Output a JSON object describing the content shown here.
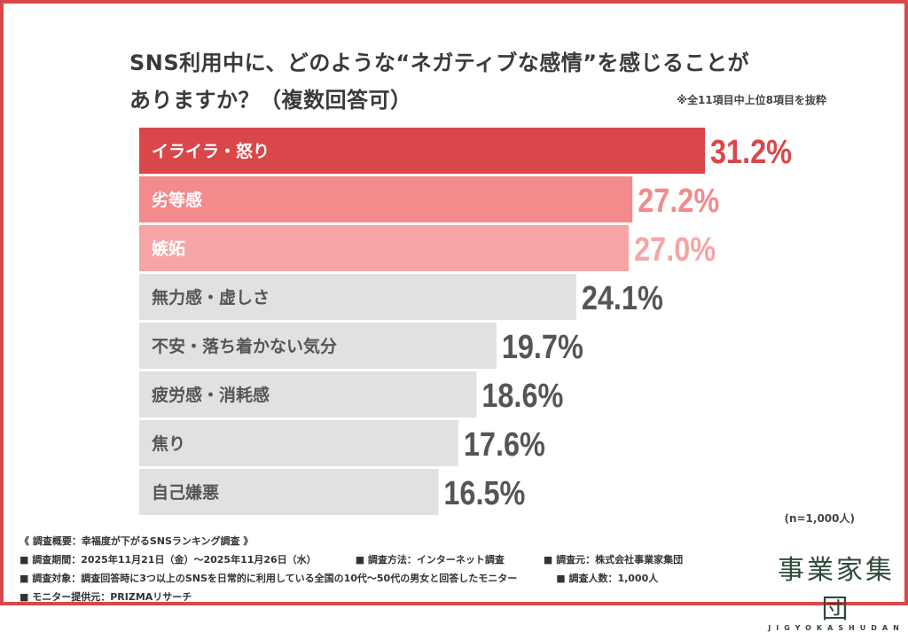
{
  "chart_data": {
    "type": "bar",
    "orientation": "horizontal",
    "title": "SNS利用中に、どのような“ネガティブな感情”を感じることがありますか？（複数回答可）",
    "title_line1": "SNS利用中に、どのような“ネガティブな感情”を感じることが",
    "title_line2": "ありますか？（複数回答可）",
    "note": "※全11項目中上位8項目を抜粋",
    "sample": "(n=1,000人)",
    "unit": "%",
    "xlim": [
      0,
      31.2
    ],
    "grid": false,
    "categories": [
      "イライラ・怒り",
      "劣等感",
      "嫉妬",
      "無力感・虚しさ",
      "不安・落ち着かない気分",
      "疲労感・消耗感",
      "焦り",
      "自己嫌悪"
    ],
    "values": [
      31.2,
      27.2,
      27.0,
      24.1,
      19.7,
      18.6,
      17.6,
      16.5
    ],
    "value_labels": [
      "31.2%",
      "27.2%",
      "27.0%",
      "24.1%",
      "19.7%",
      "18.6%",
      "17.6%",
      "16.5%"
    ],
    "colors": {
      "bar": [
        "#d9474a",
        "#f38a8c",
        "#f6a5a6",
        "#e1e1e1",
        "#e1e1e1",
        "#e1e1e1",
        "#e1e1e1",
        "#e1e1e1"
      ],
      "value": [
        "#d9474a",
        "#f38a8c",
        "#f6a5a6",
        "#555555",
        "#555555",
        "#555555",
        "#555555",
        "#555555"
      ],
      "label": [
        "#ffffff",
        "#ffffff",
        "#ffffff",
        "#555555",
        "#555555",
        "#555555",
        "#555555",
        "#555555"
      ],
      "frame": "#d9474a"
    }
  },
  "footer": {
    "heading": "《 調査概要：幸福度が下がるSNSランキング調査 》",
    "period": "■ 調査期間：2025年11月21日（金）～2025年11月26日（水）",
    "method": "■ 調査方法：インターネット調査",
    "source": "■ 調査元：株式会社事業家集団",
    "target": "■ 調査対象：調査回答時に3つ以上のSNSを日常的に利用している全国の10代～50代の男女と回答したモニター",
    "count": "■ 調査人数：1,000人",
    "provider": "■ モニター提供元：PRIZMAリサーチ"
  },
  "logo": {
    "kanji": "事業家集団",
    "roman": "JIGYOKASHUDAN"
  }
}
